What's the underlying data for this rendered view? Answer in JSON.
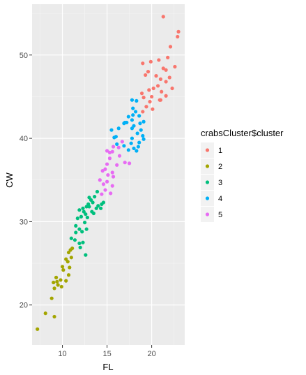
{
  "chart_data": {
    "type": "scatter",
    "xlabel": "FL",
    "ylabel": "CW",
    "xlim": [
      6.6,
      23.7
    ],
    "ylim": [
      15.2,
      56.1
    ],
    "x_ticks": [
      10,
      15,
      20
    ],
    "y_ticks": [
      20,
      30,
      40,
      50
    ],
    "grid": true,
    "legend": {
      "title": "crabsCluster$cluster",
      "position": "right"
    },
    "series": [
      {
        "name": "1",
        "color": "#F8766D",
        "points": [
          [
            21.3,
            54.6
          ],
          [
            23.0,
            52.8
          ],
          [
            22.9,
            52.2
          ],
          [
            22.1,
            51.0
          ],
          [
            21.8,
            49.7
          ],
          [
            20.8,
            49.4
          ],
          [
            19.0,
            49.0
          ],
          [
            19.9,
            49.2
          ],
          [
            22.6,
            48.6
          ],
          [
            19.6,
            48.0
          ],
          [
            21.3,
            48.4
          ],
          [
            21.6,
            48.2
          ],
          [
            19.3,
            47.6
          ],
          [
            20.5,
            47.5
          ],
          [
            21.0,
            47.1
          ],
          [
            22.0,
            47.3
          ],
          [
            21.6,
            46.8
          ],
          [
            22.3,
            46.0
          ],
          [
            19.7,
            45.8
          ],
          [
            20.7,
            46.3
          ],
          [
            20.2,
            46.0
          ],
          [
            18.9,
            45.4
          ],
          [
            21.1,
            45.6
          ],
          [
            20.0,
            45.0
          ],
          [
            19.1,
            44.9
          ],
          [
            21.6,
            45.1
          ],
          [
            20.9,
            44.6
          ],
          [
            21.0,
            44.6
          ],
          [
            19.8,
            44.4
          ],
          [
            19.4,
            43.8
          ],
          [
            20.1,
            43.5
          ],
          [
            19.0,
            43.2
          ]
        ]
      },
      {
        "name": "2",
        "color": "#A3A500",
        "points": [
          [
            7.2,
            17.1
          ],
          [
            8.1,
            19.0
          ],
          [
            8.8,
            20.8
          ],
          [
            9.1,
            18.6
          ],
          [
            9.1,
            22.0
          ],
          [
            9.5,
            22.4
          ],
          [
            9.9,
            22.2
          ],
          [
            9.0,
            22.7
          ],
          [
            9.4,
            22.8
          ],
          [
            9.8,
            23.0
          ],
          [
            10.4,
            22.9
          ],
          [
            9.3,
            23.3
          ],
          [
            10.7,
            23.6
          ],
          [
            10.1,
            24.2
          ],
          [
            10.0,
            24.6
          ],
          [
            10.8,
            24.5
          ],
          [
            10.6,
            25.2
          ],
          [
            10.4,
            25.5
          ],
          [
            11.0,
            25.7
          ],
          [
            10.7,
            26.3
          ],
          [
            10.9,
            26.6
          ],
          [
            11.1,
            26.8
          ]
        ]
      },
      {
        "name": "3",
        "color": "#00BF7D",
        "points": [
          [
            11.4,
            27.8
          ],
          [
            11.9,
            27.4
          ],
          [
            12.3,
            27.5
          ],
          [
            12.0,
            26.9
          ],
          [
            12.6,
            26.0
          ],
          [
            11.0,
            28.0
          ],
          [
            11.5,
            28.7
          ],
          [
            12.2,
            28.8
          ],
          [
            11.9,
            29.1
          ],
          [
            11.5,
            29.5
          ],
          [
            12.7,
            29.1
          ],
          [
            12.5,
            29.9
          ],
          [
            11.7,
            30.4
          ],
          [
            12.1,
            30.6
          ],
          [
            12.6,
            30.9
          ],
          [
            12.8,
            30.5
          ],
          [
            12.4,
            31.2
          ],
          [
            11.9,
            31.4
          ],
          [
            12.3,
            31.6
          ],
          [
            12.7,
            31.8
          ],
          [
            13.0,
            31.8
          ],
          [
            13.3,
            31.2
          ],
          [
            13.5,
            31.0
          ],
          [
            12.9,
            32.1
          ],
          [
            13.4,
            32.3
          ],
          [
            13.8,
            31.6
          ],
          [
            14.0,
            31.9
          ],
          [
            14.3,
            31.6
          ],
          [
            14.4,
            32.1
          ],
          [
            13.2,
            32.6
          ],
          [
            13.0,
            32.9
          ],
          [
            13.6,
            33.0
          ],
          [
            13.9,
            33.6
          ],
          [
            14.6,
            32.3
          ]
        ]
      },
      {
        "name": "4",
        "color": "#00B0F6",
        "points": [
          [
            17.8,
            44.6
          ],
          [
            18.3,
            44.5
          ],
          [
            17.9,
            43.6
          ],
          [
            18.2,
            43.2
          ],
          [
            17.4,
            42.6
          ],
          [
            17.9,
            42.8
          ],
          [
            18.6,
            42.7
          ],
          [
            17.8,
            42.2
          ],
          [
            19.1,
            42.0
          ],
          [
            16.9,
            41.8
          ],
          [
            17.0,
            41.9
          ],
          [
            17.2,
            41.9
          ],
          [
            18.7,
            41.8
          ],
          [
            18.0,
            41.5
          ],
          [
            17.8,
            41.2
          ],
          [
            15.5,
            41.0
          ],
          [
            16.3,
            41.2
          ],
          [
            18.8,
            41.0
          ],
          [
            18.4,
            40.6
          ],
          [
            19.0,
            40.3
          ],
          [
            16.0,
            40.2
          ],
          [
            15.8,
            40.1
          ],
          [
            17.8,
            40.0
          ],
          [
            19.1,
            39.9
          ],
          [
            18.6,
            39.5
          ],
          [
            16.1,
            39.3
          ],
          [
            16.9,
            39.1
          ],
          [
            17.7,
            39.4
          ],
          [
            18.5,
            39.0
          ],
          [
            18.0,
            38.8
          ],
          [
            17.4,
            38.6
          ],
          [
            18.3,
            38.5
          ]
        ]
      },
      {
        "name": "5",
        "color": "#E76BF3",
        "points": [
          [
            16.7,
            39.6
          ],
          [
            16.3,
            38.9
          ],
          [
            15.7,
            39.0
          ],
          [
            15.3,
            38.3
          ],
          [
            15.6,
            38.4
          ],
          [
            15.0,
            38.5
          ],
          [
            15.3,
            37.6
          ],
          [
            16.4,
            37.9
          ],
          [
            17.0,
            37.1
          ],
          [
            16.1,
            36.8
          ],
          [
            17.5,
            37.0
          ],
          [
            15.0,
            36.9
          ],
          [
            14.8,
            36.3
          ],
          [
            14.5,
            36.1
          ],
          [
            15.6,
            35.9
          ],
          [
            15.1,
            35.6
          ],
          [
            15.7,
            35.4
          ],
          [
            14.2,
            35.0
          ],
          [
            15.0,
            34.8
          ],
          [
            14.6,
            34.5
          ],
          [
            15.6,
            34.3
          ],
          [
            14.8,
            33.8
          ],
          [
            15.4,
            33.4
          ],
          [
            14.4,
            33.3
          ]
        ]
      }
    ]
  }
}
